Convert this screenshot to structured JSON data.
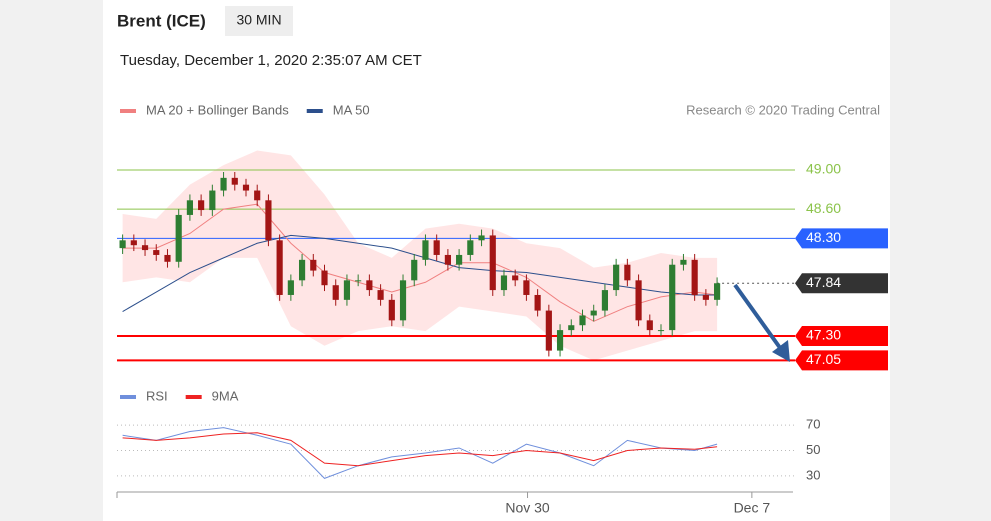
{
  "header": {
    "title": "Brent (ICE)",
    "interval": "30 MIN",
    "datetime": "Tuesday, December 1, 2020 2:35:07 AM CET"
  },
  "chart_data": {
    "type": "candlestick",
    "legend": [
      {
        "name": "MA 20 + Bollinger Bands",
        "color": "#f08080"
      },
      {
        "name": "MA 50",
        "color": "#2c4f8c"
      }
    ],
    "credit": "Research © 2020 Trading Central",
    "xlim": [
      -0.5,
      59.5
    ],
    "xticks": [
      {
        "value": 36.1,
        "label": "Nov 30"
      },
      {
        "value": 56.1,
        "label": "Dec 7"
      }
    ],
    "ylim": [
      46.9,
      49.4
    ],
    "up_color": "#2e7d32",
    "down_color": "#a31515",
    "candles": {
      "x": [
        0,
        1,
        2,
        3,
        4,
        5,
        6,
        7,
        8,
        9,
        10,
        11,
        12,
        13,
        14,
        15,
        16,
        17,
        18,
        19,
        20,
        21,
        22,
        23,
        24,
        25,
        26,
        27,
        28,
        29,
        30,
        31,
        32,
        33,
        34,
        35,
        36,
        37,
        38,
        39,
        40,
        41,
        42,
        43,
        44,
        45,
        46,
        47,
        48,
        49,
        50,
        51,
        52,
        53
      ],
      "open": [
        48.2,
        48.28,
        48.23,
        48.18,
        48.13,
        48.06,
        48.54,
        48.69,
        48.59,
        48.79,
        48.92,
        48.85,
        48.79,
        48.69,
        48.28,
        47.72,
        47.87,
        48.08,
        47.97,
        47.82,
        47.67,
        47.87,
        47.87,
        47.77,
        47.67,
        47.46,
        47.87,
        48.08,
        48.28,
        48.13,
        48.03,
        48.13,
        48.28,
        48.33,
        47.77,
        47.92,
        47.87,
        47.72,
        47.56,
        47.15,
        47.36,
        47.41,
        47.51,
        47.56,
        47.77,
        48.03,
        47.87,
        47.46,
        47.36,
        47.36,
        48.03,
        48.08,
        47.72,
        47.67
      ],
      "high": [
        48.34,
        48.34,
        48.29,
        48.24,
        48.19,
        48.6,
        48.75,
        48.75,
        48.85,
        48.98,
        48.98,
        48.91,
        48.85,
        48.75,
        48.34,
        47.93,
        48.14,
        48.14,
        48.03,
        47.88,
        47.93,
        47.93,
        47.93,
        47.83,
        47.73,
        47.93,
        48.14,
        48.34,
        48.34,
        48.19,
        48.19,
        48.34,
        48.39,
        48.39,
        47.98,
        47.98,
        47.93,
        47.78,
        47.62,
        47.42,
        47.47,
        47.57,
        47.62,
        47.83,
        48.09,
        48.09,
        47.93,
        47.52,
        47.42,
        48.09,
        48.14,
        48.14,
        47.78,
        47.9
      ],
      "low": [
        48.14,
        48.17,
        48.12,
        48.07,
        48.0,
        48.0,
        48.48,
        48.53,
        48.53,
        48.73,
        48.79,
        48.73,
        48.63,
        48.22,
        47.66,
        47.66,
        47.81,
        47.91,
        47.76,
        47.61,
        47.61,
        47.81,
        47.71,
        47.61,
        47.4,
        47.4,
        47.81,
        48.02,
        48.07,
        47.97,
        47.97,
        48.07,
        48.22,
        47.71,
        47.71,
        47.81,
        47.66,
        47.5,
        47.09,
        47.09,
        47.3,
        47.35,
        47.45,
        47.5,
        47.71,
        47.81,
        47.4,
        47.3,
        47.3,
        47.3,
        47.97,
        47.66,
        47.61,
        47.61
      ],
      "close": [
        48.28,
        48.23,
        48.18,
        48.13,
        48.06,
        48.54,
        48.69,
        48.59,
        48.79,
        48.92,
        48.85,
        48.79,
        48.69,
        48.28,
        47.72,
        47.87,
        48.08,
        47.97,
        47.82,
        47.67,
        47.87,
        47.87,
        47.77,
        47.67,
        47.46,
        47.87,
        48.08,
        48.28,
        48.13,
        48.03,
        48.13,
        48.28,
        48.33,
        47.77,
        47.92,
        47.87,
        47.72,
        47.56,
        47.15,
        47.36,
        47.41,
        47.51,
        47.56,
        47.77,
        48.03,
        47.87,
        47.46,
        47.36,
        47.36,
        48.03,
        48.08,
        47.72,
        47.67,
        47.84
      ]
    },
    "indicator_x": [
      0,
      3,
      6,
      9,
      12,
      15,
      18,
      21,
      24,
      27,
      30,
      33,
      36,
      39,
      42,
      45,
      48,
      51,
      53
    ],
    "bands": {
      "color": "#ffdede",
      "upper": [
        48.55,
        48.5,
        48.85,
        49.05,
        49.2,
        49.15,
        48.75,
        48.25,
        48.1,
        48.4,
        48.45,
        48.4,
        48.25,
        48.2,
        48.0,
        48.05,
        48.15,
        48.1,
        48.1
      ],
      "lower": [
        47.85,
        47.9,
        47.85,
        48.1,
        48.1,
        47.4,
        47.2,
        47.35,
        47.4,
        47.35,
        47.6,
        47.55,
        47.5,
        47.2,
        47.05,
        47.15,
        47.25,
        47.35,
        47.35
      ]
    },
    "series": [
      {
        "name": "MA 20",
        "color": "#f08080",
        "values": [
          48.2,
          48.2,
          48.35,
          48.6,
          48.65,
          48.25,
          47.95,
          47.85,
          47.75,
          47.85,
          48.05,
          48.05,
          47.9,
          47.65,
          47.45,
          47.6,
          47.7,
          47.75,
          47.72
        ]
      },
      {
        "name": "MA 50",
        "color": "#2c4f8c",
        "values": [
          47.55,
          47.75,
          47.95,
          48.1,
          48.25,
          48.33,
          48.3,
          48.25,
          48.2,
          48.1,
          48.0,
          47.97,
          47.95,
          47.9,
          47.85,
          47.8,
          47.75,
          47.72,
          47.72
        ]
      }
    ],
    "levels": [
      {
        "value": 49.0,
        "label": "49.00",
        "color": "#8bc34a",
        "style": "text"
      },
      {
        "value": 48.6,
        "label": "48.60",
        "color": "#8bc34a",
        "style": "text"
      },
      {
        "value": 48.3,
        "label": "48.30",
        "color": "#2962ff",
        "style": "box"
      },
      {
        "value": 47.84,
        "label": "47.84",
        "color": "#333333",
        "style": "last"
      },
      {
        "value": 47.3,
        "label": "47.30",
        "color": "#ff0000",
        "style": "box"
      },
      {
        "value": 47.05,
        "label": "47.05",
        "color": "#ff0000",
        "style": "box"
      }
    ],
    "rsi": {
      "legend": [
        {
          "name": "RSI",
          "color": "#6f8fdc"
        },
        {
          "name": "9MA",
          "color": "#ee2222"
        }
      ],
      "ylim": [
        22,
        78
      ],
      "yticks": [
        30,
        50,
        70
      ],
      "series": [
        {
          "name": "RSI",
          "color": "#6f8fdc",
          "values": [
            62,
            58,
            65,
            68,
            62,
            55,
            28,
            38,
            45,
            48,
            52,
            40,
            55,
            48,
            38,
            58,
            52,
            50,
            55
          ]
        },
        {
          "name": "9MA",
          "color": "#ee2222",
          "values": [
            60,
            58,
            60,
            63,
            64,
            58,
            40,
            38,
            42,
            46,
            48,
            46,
            50,
            48,
            42,
            50,
            52,
            51,
            53
          ]
        }
      ]
    }
  }
}
